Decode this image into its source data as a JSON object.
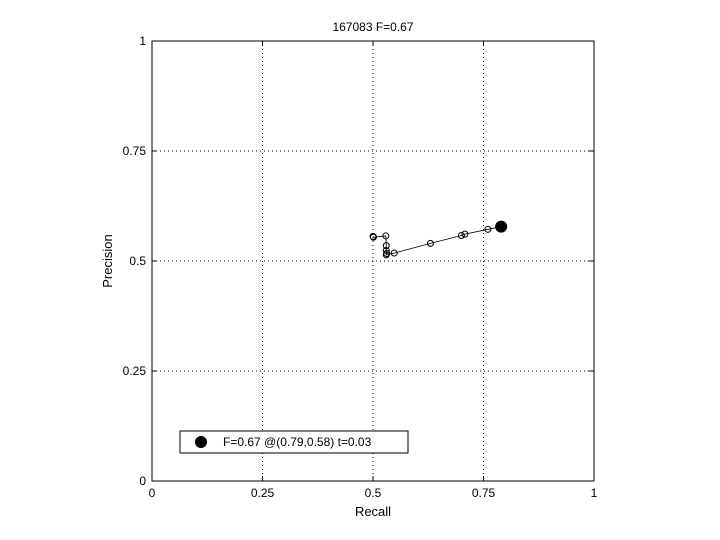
{
  "chart_data": {
    "type": "line",
    "title": "167083 F=0.67",
    "xlabel": "Recall",
    "ylabel": "Precision",
    "xlim": [
      0,
      1
    ],
    "ylim": [
      0,
      1
    ],
    "xticks": [
      0,
      0.25,
      0.5,
      0.75,
      1
    ],
    "xtick_labels": [
      "0",
      "0.25",
      "0.5",
      "0.75",
      "1"
    ],
    "yticks": [
      0,
      0.25,
      0.5,
      0.75,
      1
    ],
    "ytick_labels": [
      "0",
      "0.25",
      "0.5",
      "0.75",
      "1"
    ],
    "grid": true,
    "grid_style": "dotted",
    "legend_position": "bottom-left",
    "series": [
      {
        "marker": "open-circle",
        "color": "#000000",
        "points": [
          [
            0.5,
            0.556
          ],
          [
            0.501,
            0.554
          ],
          [
            0.529,
            0.557
          ],
          [
            0.53,
            0.535
          ],
          [
            0.53,
            0.524
          ],
          [
            0.531,
            0.517
          ],
          [
            0.53,
            0.514
          ],
          [
            0.548,
            0.518
          ],
          [
            0.63,
            0.54
          ],
          [
            0.7,
            0.558
          ],
          [
            0.708,
            0.561
          ],
          [
            0.76,
            0.572
          ],
          [
            0.79,
            0.578
          ]
        ]
      }
    ],
    "best_point": {
      "x": 0.79,
      "y": 0.578,
      "marker": "filled-circle",
      "color": "#000000",
      "legend_label": "F=0.67 @(0.79,0.58) t=0.03"
    }
  }
}
